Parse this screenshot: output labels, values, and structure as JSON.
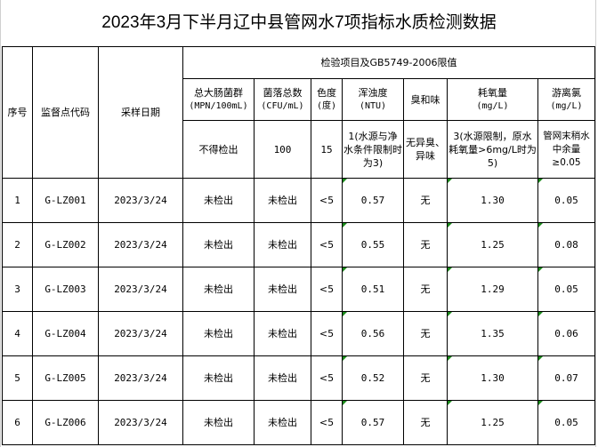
{
  "title": "2023年3月下半月辽中县管网水7项指标水质检测数据",
  "headers": {
    "seq": "序号",
    "site": "监督点代码",
    "date": "采样日期",
    "group": "检验项目及GB5749-2006限值",
    "items": [
      {
        "name": "总大肠菌群",
        "unit": "(MPN/100mL)",
        "limit": "不得检出"
      },
      {
        "name": "菌落总数",
        "unit": "(CFU/mL)",
        "limit": "100"
      },
      {
        "name": "色度",
        "unit": "(度)",
        "limit": "15"
      },
      {
        "name": "浑浊度",
        "unit": "(NTU)",
        "limit": "1(水源与净水条件限制时为3)"
      },
      {
        "name": "臭和味",
        "unit": "",
        "limit": "无异臭、异味"
      },
      {
        "name": "耗氧量",
        "unit": "(mg/L)",
        "limit": "3(水源限制，原水耗氧量>6mg/L时为5)"
      },
      {
        "name": "游离氯",
        "unit": "(mg/L)",
        "limit": "管网末稍水中余量≥0.05"
      }
    ]
  },
  "rows": [
    [
      "1",
      "G-LZ001",
      "2023/3/24",
      "未检出",
      "未检出",
      "<5",
      "0.57",
      "无",
      "1.30",
      "0.05"
    ],
    [
      "2",
      "G-LZ002",
      "2023/3/24",
      "未检出",
      "未检出",
      "<5",
      "0.55",
      "无",
      "1.25",
      "0.08"
    ],
    [
      "3",
      "G-LZ003",
      "2023/3/24",
      "未检出",
      "未检出",
      "<5",
      "0.51",
      "无",
      "1.29",
      "0.05"
    ],
    [
      "4",
      "G-LZ004",
      "2023/3/24",
      "未检出",
      "未检出",
      "<5",
      "0.56",
      "无",
      "1.35",
      "0.06"
    ],
    [
      "5",
      "G-LZ005",
      "2023/3/24",
      "未检出",
      "未检出",
      "<5",
      "0.52",
      "无",
      "1.30",
      "0.07"
    ],
    [
      "6",
      "G-LZ006",
      "2023/3/24",
      "未检出",
      "未检出",
      "<5",
      "0.57",
      "无",
      "1.25",
      "0.05"
    ]
  ]
}
